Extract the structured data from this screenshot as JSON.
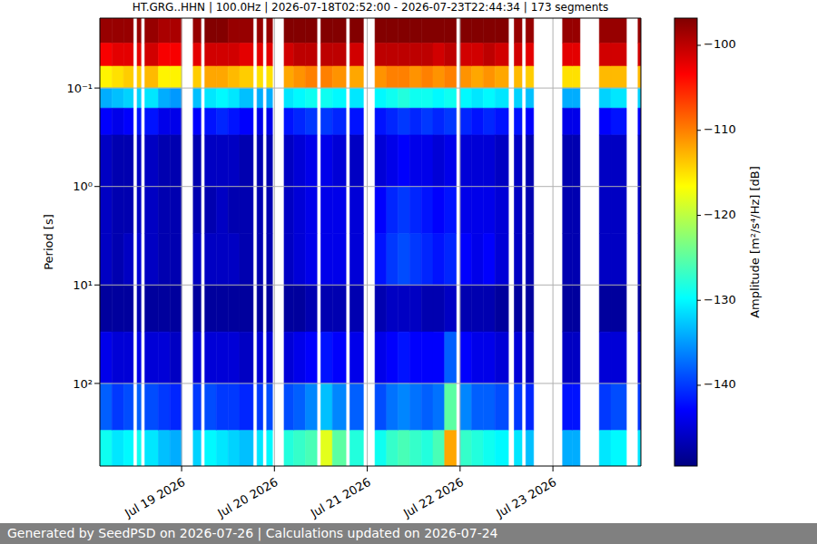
{
  "chart_data": {
    "type": "heatmap",
    "title": "HT.GRG..HHN | 100.0Hz | 2026-07-18T02:52:00 - 2026-07-23T22:44:34 | 173 segments",
    "footer": "Generated by SeedPSD on 2026-07-26 | Calculations updated on 2026-07-24",
    "y_label": "Period [s]",
    "log": "y",
    "grid": true,
    "xlim": [
      "2026-07-18T02:52:00",
      "2026-07-23T22:44:34"
    ],
    "xticks": [
      {
        "value": "2026-07-19T00:00",
        "label": "Jul 19 2026"
      },
      {
        "value": "2026-07-20T00:00",
        "label": "Jul 20 2026"
      },
      {
        "value": "2026-07-21T00:00",
        "label": "Jul 21 2026"
      },
      {
        "value": "2026-07-22T00:00",
        "label": "Jul 22 2026"
      },
      {
        "value": "2026-07-23T00:00",
        "label": "Jul 23 2026"
      }
    ],
    "ylim": [
      690,
      0.0195
    ],
    "yticks": [
      {
        "value": 0.1,
        "label": "10⁻¹"
      },
      {
        "value": 1,
        "label": "10⁰"
      },
      {
        "value": 10,
        "label": "10¹"
      },
      {
        "value": 100,
        "label": "10²"
      }
    ],
    "x_bins": [
      "2026-07-18T02:52:00",
      "2026-07-18T06:00",
      "2026-07-18T09:00",
      "2026-07-18T11:30",
      "2026-07-18T12:30",
      "2026-07-18T13:30",
      "2026-07-18T14:30",
      "2026-07-18T18:00",
      "2026-07-18T21:00",
      "2026-07-19T00:00",
      "2026-07-19T03:00",
      "2026-07-19T05:00",
      "2026-07-19T06:00",
      "2026-07-19T09:00",
      "2026-07-19T12:00",
      "2026-07-19T15:00",
      "2026-07-19T18:30",
      "2026-07-19T19:30",
      "2026-07-19T21:00",
      "2026-07-19T22:00",
      "2026-07-19T23:30",
      "2026-07-20T02:30",
      "2026-07-20T05:00",
      "2026-07-20T08:00",
      "2026-07-20T11:00",
      "2026-07-20T12:00",
      "2026-07-20T15:00",
      "2026-07-20T18:30",
      "2026-07-20T19:30",
      "2026-07-20T23:00",
      "2026-07-21T02:00",
      "2026-07-21T05:00",
      "2026-07-21T08:00",
      "2026-07-21T11:00",
      "2026-07-21T14:00",
      "2026-07-21T17:00",
      "2026-07-21T20:00",
      "2026-07-21T23:00",
      "2026-07-22T00:00",
      "2026-07-22T03:00",
      "2026-07-22T06:00",
      "2026-07-22T09:00",
      "2026-07-22T12:30",
      "2026-07-22T14:00",
      "2026-07-22T16:00",
      "2026-07-22T17:00",
      "2026-07-22T19:00",
      "2026-07-23T02:30",
      "2026-07-23T05:00",
      "2026-07-23T07:00",
      "2026-07-23T12:00",
      "2026-07-23T15:00",
      "2026-07-23T19:00",
      "2026-07-23T22:00",
      "2026-07-23T22:44:34"
    ],
    "y_bins": [
      0.0195,
      0.035,
      0.06,
      0.1,
      0.16,
      0.3,
      1,
      3,
      10,
      30,
      100,
      300,
      690
    ],
    "cells": [
      [
        -98,
        -103,
        -116,
        -134,
        -143,
        -146,
        -146,
        -146,
        -148,
        -144,
        -138,
        -129
      ],
      [
        -98,
        -102,
        -115,
        -133,
        -144,
        -147,
        -147,
        -147,
        -148,
        -145,
        -140,
        -131
      ],
      [
        -98,
        -102,
        -114,
        -132,
        -143,
        -147,
        -147,
        -146,
        -148,
        -145,
        -139,
        -130
      ],
      null,
      [
        -98,
        -102,
        -114,
        -132,
        -142,
        -146,
        -146,
        -145,
        -147,
        -144,
        -138,
        -129
      ],
      null,
      [
        -98,
        -101,
        -113,
        -131,
        -142,
        -146,
        -146,
        -146,
        -148,
        -145,
        -139,
        -131
      ],
      [
        -99,
        -103,
        -116,
        -134,
        -144,
        -147,
        -147,
        -147,
        -148,
        -145,
        -140,
        -133
      ],
      [
        -99,
        -103,
        -116,
        -135,
        -144,
        -147,
        -147,
        -147,
        -148,
        -146,
        -141,
        -134
      ],
      null,
      [
        -98,
        -102,
        -114,
        -133,
        -143,
        -147,
        -147,
        -146,
        -148,
        -145,
        -140,
        -132
      ],
      null,
      [
        -97,
        -101,
        -112,
        -131,
        -142,
        -146,
        -147,
        -146,
        -148,
        -145,
        -139,
        -130
      ],
      [
        -97,
        -101,
        -112,
        -130,
        -141,
        -146,
        -146,
        -146,
        -148,
        -145,
        -140,
        -131
      ],
      [
        -98,
        -101,
        -113,
        -131,
        -142,
        -146,
        -147,
        -146,
        -148,
        -145,
        -140,
        -132
      ],
      [
        -98,
        -102,
        -114,
        -133,
        -143,
        -147,
        -147,
        -147,
        -148,
        -146,
        -141,
        -133
      ],
      null,
      [
        -98,
        -102,
        -115,
        -134,
        -144,
        -147,
        -147,
        -147,
        -148,
        -145,
        -140,
        -131
      ],
      null,
      [
        -98,
        -102,
        -115,
        -134,
        -144,
        -147,
        -147,
        -147,
        -148,
        -145,
        -139,
        -130
      ],
      null,
      [
        -97,
        -101,
        -112,
        -131,
        -142,
        -146,
        -146,
        -146,
        -148,
        -145,
        -139,
        -128
      ],
      [
        -97,
        -100,
        -111,
        -130,
        -141,
        -145,
        -145,
        -145,
        -148,
        -144,
        -138,
        -127
      ],
      [
        -97,
        -100,
        -110,
        -129,
        -140,
        -144,
        -144,
        -144,
        -147,
        -143,
        -136,
        -126
      ],
      null,
      [
        -97,
        -100,
        -110,
        -129,
        -140,
        -144,
        -144,
        -144,
        -147,
        -142,
        -133,
        -118
      ],
      [
        -97,
        -100,
        -111,
        -130,
        -141,
        -145,
        -144,
        -144,
        -147,
        -143,
        -136,
        -125
      ],
      null,
      [
        -97,
        -101,
        -112,
        -131,
        -142,
        -146,
        -145,
        -145,
        -147,
        -144,
        -138,
        -128
      ],
      null,
      [
        -97,
        -100,
        -111,
        -130,
        -142,
        -145,
        -143,
        -142,
        -147,
        -144,
        -139,
        -129
      ],
      [
        -97,
        -100,
        -110,
        -129,
        -141,
        -144,
        -141,
        -140,
        -146,
        -143,
        -137,
        -127
      ],
      [
        -97,
        -100,
        -110,
        -128,
        -140,
        -143,
        -140,
        -139,
        -146,
        -142,
        -136,
        -126
      ],
      [
        -97,
        -100,
        -111,
        -129,
        -141,
        -144,
        -141,
        -140,
        -146,
        -143,
        -137,
        -127
      ],
      [
        -97,
        -100,
        -110,
        -129,
        -140,
        -144,
        -142,
        -141,
        -147,
        -143,
        -138,
        -128
      ],
      [
        -97,
        -101,
        -111,
        -130,
        -141,
        -145,
        -143,
        -142,
        -147,
        -143,
        -137,
        -126
      ],
      [
        -97,
        -100,
        -110,
        -129,
        -140,
        -144,
        -142,
        -141,
        -146,
        -138,
        -125,
        -112
      ],
      null,
      [
        -97,
        -101,
        -111,
        -130,
        -141,
        -145,
        -144,
        -143,
        -147,
        -143,
        -136,
        -127
      ],
      [
        -97,
        -101,
        -112,
        -131,
        -142,
        -145,
        -144,
        -144,
        -147,
        -144,
        -138,
        -128
      ],
      [
        -97,
        -100,
        -111,
        -130,
        -141,
        -145,
        -144,
        -143,
        -147,
        -144,
        -138,
        -129
      ],
      [
        -97,
        -101,
        -112,
        -131,
        -142,
        -146,
        -145,
        -145,
        -148,
        -145,
        -139,
        -130
      ],
      null,
      [
        -98,
        -101,
        -113,
        -132,
        -142,
        -146,
        -146,
        -146,
        -148,
        -145,
        -140,
        -131
      ],
      null,
      [
        -98,
        -102,
        -114,
        -133,
        -143,
        -147,
        -147,
        -147,
        -148,
        -146,
        -141,
        -133
      ],
      null,
      [
        -98,
        -102,
        -115,
        -134,
        -144,
        -147,
        -147,
        -147,
        -148,
        -146,
        -142,
        -134
      ],
      [
        -98,
        -102,
        -115,
        -134,
        -144,
        -147,
        -147,
        -147,
        -148,
        -146,
        -142,
        -134
      ],
      null,
      [
        -98,
        -101,
        -113,
        -132,
        -143,
        -146,
        -146,
        -146,
        -148,
        -145,
        -140,
        -131
      ],
      [
        -98,
        -101,
        -113,
        -131,
        -142,
        -146,
        -146,
        -146,
        -148,
        -145,
        -139,
        -130
      ],
      null,
      [
        -98,
        -101,
        -113,
        -132,
        -143,
        -146,
        -146,
        -146,
        -148,
        -145,
        -140,
        -131
      ]
    ],
    "colorbar": {
      "label": "Amplitude [m²/s⁴/Hz] [dB]",
      "range": [
        -149.5,
        -96.8
      ],
      "ticks": [
        {
          "value": -100,
          "label": "−100"
        },
        {
          "value": -110,
          "label": "−110"
        },
        {
          "value": -120,
          "label": "−120"
        },
        {
          "value": -130,
          "label": "−130"
        },
        {
          "value": -140,
          "label": "−140"
        }
      ]
    }
  }
}
